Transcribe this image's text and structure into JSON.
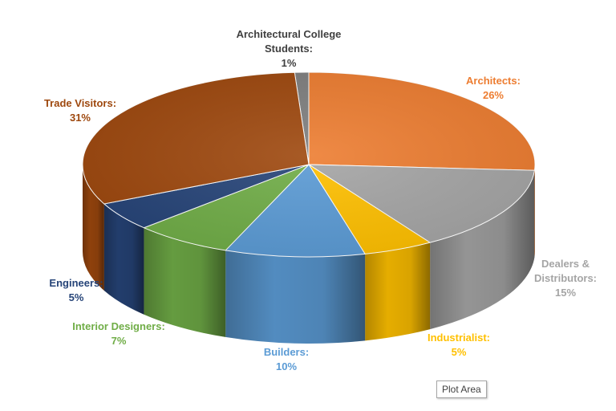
{
  "chart_data": {
    "type": "pie",
    "title": "",
    "slices": [
      {
        "label": "Architectural College Students:",
        "value": 1,
        "value_text": "1%",
        "color": "#7f7f7f",
        "label_color": "#404040"
      },
      {
        "label": "Architects:",
        "value": 26,
        "value_text": "26%",
        "color": "#ed7d31",
        "label_color": "#ed7d31"
      },
      {
        "label": "Dealers & Distributors:",
        "value": 15,
        "value_text": "15%",
        "color": "#a5a5a5",
        "label_color": "#a5a5a5"
      },
      {
        "label": "Industrialist:",
        "value": 5,
        "value_text": "5%",
        "color": "#ffc000",
        "label_color": "#ffc000"
      },
      {
        "label": "Builders:",
        "value": 10,
        "value_text": "10%",
        "color": "#5b9bd5",
        "label_color": "#5b9bd5"
      },
      {
        "label": "Interior Designers:",
        "value": 7,
        "value_text": "7%",
        "color": "#70ad47",
        "label_color": "#70ad47"
      },
      {
        "label": "Engineers:",
        "value": 5,
        "value_text": "5%",
        "color": "#264478",
        "label_color": "#264478"
      },
      {
        "label": "Trade Visitors:",
        "value": 31,
        "value_text": "31%",
        "color": "#9e480e",
        "label_color": "#9e480e"
      }
    ],
    "legend": "none",
    "style": "3d-pie"
  },
  "tooltip": {
    "text": "Plot Area"
  }
}
